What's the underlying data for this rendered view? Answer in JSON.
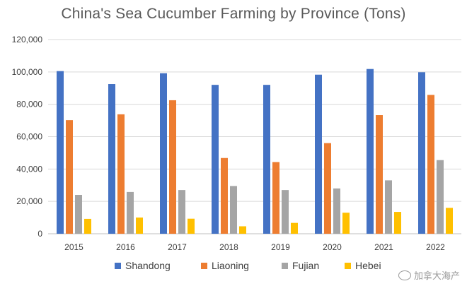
{
  "chart_data": {
    "type": "bar",
    "title": "China's Sea Cucumber Farming by Province (Tons)",
    "categories": [
      "2015",
      "2016",
      "2017",
      "2018",
      "2019",
      "2020",
      "2021",
      "2022"
    ],
    "series": [
      {
        "name": "Shandong",
        "color": "#4472C4",
        "values": [
          100500,
          92500,
          99200,
          92000,
          92000,
          98300,
          101800,
          99800
        ]
      },
      {
        "name": "Liaoning",
        "color": "#ED7D31",
        "values": [
          70200,
          73800,
          82500,
          46800,
          44300,
          56000,
          73300,
          85800
        ]
      },
      {
        "name": "Fujian",
        "color": "#A5A5A5",
        "values": [
          24000,
          25800,
          27000,
          29500,
          27000,
          28000,
          33000,
          45500
        ]
      },
      {
        "name": "Hebei",
        "color": "#FFC000",
        "values": [
          9200,
          10000,
          9300,
          4600,
          6700,
          13000,
          13500,
          16000
        ]
      }
    ],
    "yticks": [
      "0",
      "20,000",
      "40,000",
      "60,000",
      "80,000",
      "100,000",
      "120,000"
    ],
    "ylim": [
      0,
      120000
    ],
    "grid": true,
    "legend_position": "bottom"
  },
  "watermark": "加拿大海产"
}
